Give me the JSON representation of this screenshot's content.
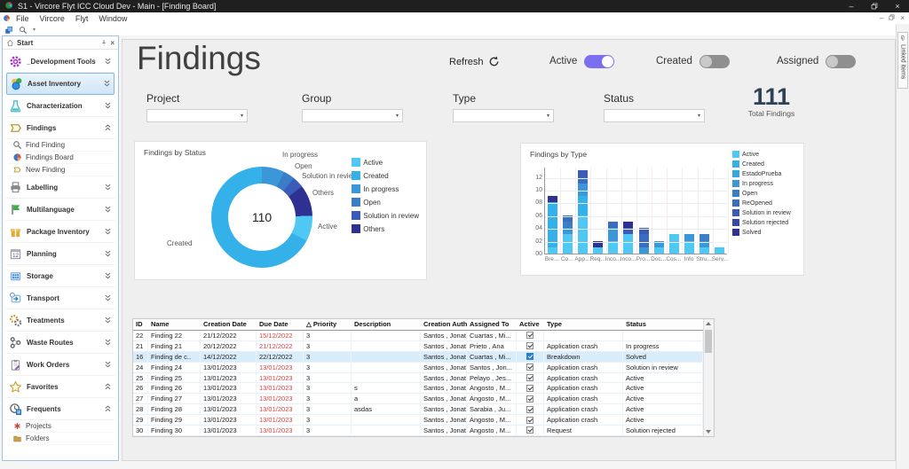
{
  "titlebar": {
    "title": "S1 - Vircore Flyt ICC Cloud Dev - Main - [Finding Board]"
  },
  "menubar": {
    "items": [
      "File",
      "Vircore",
      "Flyt",
      "Window"
    ]
  },
  "toolbar": {
    "icons": [
      "windows-cascade-icon",
      "search-icon",
      "toolbar-overflow-caret-icon"
    ]
  },
  "sidebar": {
    "title": "Start",
    "groups": [
      {
        "label": "_Development Tools",
        "icon": "dev-tools",
        "expander": "down"
      },
      {
        "label": "Asset Inventory",
        "icon": "asset-inventory",
        "expander": "down",
        "selected": true
      },
      {
        "label": "Characterization",
        "icon": "characterization",
        "expander": "down"
      },
      {
        "label": "Findings",
        "icon": "findings",
        "expander": "up",
        "children": [
          {
            "label": "Find Finding",
            "icon": "find-finding"
          },
          {
            "label": "Findings Board",
            "icon": "findings-board"
          },
          {
            "label": "New Finding",
            "icon": "new-finding"
          }
        ]
      },
      {
        "label": "Labelling",
        "icon": "labelling",
        "expander": "down"
      },
      {
        "label": "Multilanguage",
        "icon": "multilanguage",
        "expander": "down"
      },
      {
        "label": "Package Inventory",
        "icon": "package-inventory",
        "expander": "down"
      },
      {
        "label": "Planning",
        "icon": "planning",
        "expander": "down"
      },
      {
        "label": "Storage",
        "icon": "storage",
        "expander": "down"
      },
      {
        "label": "Transport",
        "icon": "transport",
        "expander": "down"
      },
      {
        "label": "Treatments",
        "icon": "treatments",
        "expander": "down"
      },
      {
        "label": "Waste Routes",
        "icon": "waste-routes",
        "expander": "down"
      },
      {
        "label": "Work Orders",
        "icon": "work-orders",
        "expander": "down"
      },
      {
        "label": "Favorites",
        "icon": "favorites",
        "expander": "up"
      },
      {
        "label": "Frequents",
        "icon": "frequents",
        "expander": "up",
        "children": [
          {
            "label": "Projects",
            "icon": "projects"
          },
          {
            "label": "Folders",
            "icon": "folders"
          }
        ]
      }
    ]
  },
  "header": {
    "title": "Findings",
    "refresh_label": "Refresh",
    "toggles": [
      {
        "label": "Active",
        "on": true
      },
      {
        "label": "Created",
        "on": false
      },
      {
        "label": "Assigned",
        "on": false
      }
    ],
    "accent_color": "#7b6ff0"
  },
  "filters": [
    {
      "label": "Project",
      "value": ""
    },
    {
      "label": "Group",
      "value": ""
    },
    {
      "label": "Type",
      "value": ""
    },
    {
      "label": "Status",
      "value": ""
    }
  ],
  "total": {
    "value": "111",
    "label": "Total Findings"
  },
  "linked_items_tab": "Linked items",
  "chart_data": [
    {
      "type": "pie",
      "subtype": "donut",
      "title": "Findings by Status",
      "center_total": "110",
      "segments": [
        {
          "label": "In progress",
          "value": 8,
          "color": "#3b97d8"
        },
        {
          "label": "Open",
          "value": 4,
          "color": "#3a7ec8"
        },
        {
          "label": "Solution in review",
          "value": 4,
          "color": "#3a5cb8"
        },
        {
          "label": "Others",
          "value": 11,
          "color": "#2e3192"
        },
        {
          "label": "Active",
          "value": 9,
          "color": "#4fc8f4"
        },
        {
          "label": "Created",
          "value": 74,
          "color": "#33b1e8"
        }
      ],
      "legend": [
        {
          "label": "Active",
          "color": "#4fc8f4"
        },
        {
          "label": "Created",
          "color": "#33b1e8"
        },
        {
          "label": "In progress",
          "color": "#3b97d8"
        },
        {
          "label": "Open",
          "color": "#3a7ec8"
        },
        {
          "label": "Solution in review",
          "color": "#3a5cb8"
        },
        {
          "label": "Others",
          "color": "#2e3192"
        }
      ]
    },
    {
      "type": "bar",
      "stacked": true,
      "title": "Findings by Type",
      "categories": [
        "Bre...",
        "Co...",
        "App...",
        "Req...",
        "Inco...",
        "Inco...",
        "Pro...",
        "Doc...",
        "Cos...",
        "Info",
        "Stru...",
        "Serv..."
      ],
      "y_ticks": [
        "00",
        "02",
        "04",
        "06",
        "08",
        "10",
        "12"
      ],
      "ylim": [
        0,
        13
      ],
      "legend_position": "right",
      "series": [
        {
          "name": "Active",
          "color": "#4fc8f4",
          "values": [
            1,
            3,
            6,
            1,
            2,
            3,
            0,
            1,
            3,
            2,
            1,
            1
          ]
        },
        {
          "name": "Created",
          "color": "#33b1e8",
          "values": [
            7,
            0,
            3,
            0,
            0,
            0,
            0,
            0,
            0,
            0,
            0,
            0
          ]
        },
        {
          "name": "EstadoPrueba",
          "color": "#37a6e0",
          "values": [
            0,
            0,
            0,
            0,
            0,
            0,
            0,
            0,
            0,
            0,
            0,
            0
          ]
        },
        {
          "name": "In progress",
          "color": "#3b97d8",
          "values": [
            0,
            1,
            2,
            0,
            2,
            0,
            1,
            1,
            0,
            1,
            1,
            0
          ]
        },
        {
          "name": "Open",
          "color": "#3a7ec8",
          "values": [
            0,
            1,
            0,
            0,
            0,
            0,
            0,
            0,
            0,
            0,
            1,
            0
          ]
        },
        {
          "name": "ReOpened",
          "color": "#3a6cc0",
          "values": [
            0,
            1,
            1,
            0,
            1,
            0,
            2,
            0,
            0,
            0,
            0,
            0
          ]
        },
        {
          "name": "Solution in review",
          "color": "#3a5cb8",
          "values": [
            0,
            0,
            1,
            0,
            0,
            1,
            1,
            0,
            0,
            0,
            0,
            0
          ]
        },
        {
          "name": "Solution rejected",
          "color": "#3648a8",
          "values": [
            0,
            0,
            0,
            0,
            0,
            0,
            0,
            0,
            0,
            0,
            0,
            0
          ]
        },
        {
          "name": "Solved",
          "color": "#2e3192",
          "values": [
            1,
            0,
            0,
            1,
            0,
            1,
            0,
            0,
            0,
            0,
            0,
            0
          ]
        }
      ]
    }
  ],
  "table": {
    "columns": [
      "ID",
      "Name",
      "Creation Date",
      "Due Date",
      "△ Priority",
      "Description",
      "Creation Author",
      "Assigned To",
      "Active",
      "Type",
      "Status"
    ],
    "rows": [
      {
        "id": "22",
        "name": "Finding 22",
        "created": "21/12/2022",
        "due": "15/12/2022",
        "due_red": true,
        "priority": "3",
        "description": "",
        "author": "Santos , Jonatan",
        "assigned": "Cuartas , Mi...",
        "active": true,
        "type": "",
        "status": ""
      },
      {
        "id": "21",
        "name": "Finding 21",
        "created": "20/12/2022",
        "due": "21/12/2022",
        "due_red": true,
        "priority": "3",
        "description": "",
        "author": "Santos , Jonatan",
        "assigned": "Prieto , Ana",
        "active": true,
        "type": "Application crash",
        "status": "In progress"
      },
      {
        "id": "16",
        "name": "Finding de c..",
        "created": "14/12/2022",
        "due": "22/12/2022",
        "due_red": false,
        "priority": "3",
        "description": "",
        "author": "Santos , Jonatan",
        "assigned": "Cuartas , Mi...",
        "active": true,
        "type": "Breakdown",
        "status": "Solved",
        "selected": true
      },
      {
        "id": "24",
        "name": "Finding 24",
        "created": "13/01/2023",
        "due": "13/01/2023",
        "due_red": true,
        "priority": "3",
        "description": "",
        "author": "Santos , Jonatan",
        "assigned": "Santos , Jon...",
        "active": true,
        "type": "Application crash",
        "status": "Solution in review"
      },
      {
        "id": "25",
        "name": "Finding 25",
        "created": "13/01/2023",
        "due": "13/01/2023",
        "due_red": true,
        "priority": "3",
        "description": "",
        "author": "Santos , Jonatan",
        "assigned": "Pelayo , Jes...",
        "active": true,
        "type": "Application crash",
        "status": "Active"
      },
      {
        "id": "26",
        "name": "Finding 26",
        "created": "13/01/2023",
        "due": "13/01/2023",
        "due_red": true,
        "priority": "3",
        "description": "s",
        "author": "Santos , Jonatan",
        "assigned": "Angosto , M...",
        "active": true,
        "type": "Application crash",
        "status": "Active"
      },
      {
        "id": "27",
        "name": "Finding 27",
        "created": "13/01/2023",
        "due": "13/01/2023",
        "due_red": true,
        "priority": "3",
        "description": "a",
        "author": "Santos , Jonatan",
        "assigned": "Angosto , M...",
        "active": true,
        "type": "Application crash",
        "status": "Active"
      },
      {
        "id": "28",
        "name": "Finding 28",
        "created": "13/01/2023",
        "due": "13/01/2023",
        "due_red": true,
        "priority": "3",
        "description": "asdas",
        "author": "Santos , Jonatan",
        "assigned": "Sarabia , Ju...",
        "active": true,
        "type": "Application crash",
        "status": "Active"
      },
      {
        "id": "29",
        "name": "Finding 29",
        "created": "13/01/2023",
        "due": "13/01/2023",
        "due_red": true,
        "priority": "3",
        "description": "",
        "author": "Santos , Jonatan",
        "assigned": "Angosto , M...",
        "active": true,
        "type": "Application crash",
        "status": "Active"
      },
      {
        "id": "30",
        "name": "Finding 30",
        "created": "13/01/2023",
        "due": "13/01/2023",
        "due_red": true,
        "priority": "3",
        "description": "",
        "author": "Santos , Jonatan",
        "assigned": "Angosto , M...",
        "active": true,
        "type": "Request",
        "status": "Solution rejected"
      }
    ]
  }
}
